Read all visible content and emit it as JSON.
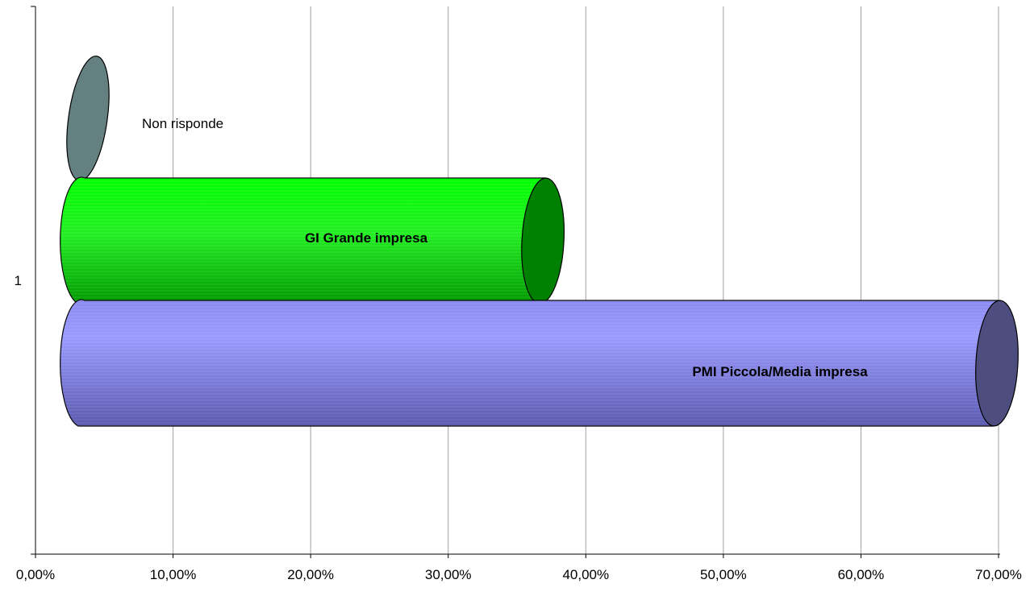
{
  "chart_data": {
    "type": "bar",
    "orientation": "horizontal",
    "style": "3d-cylinder",
    "categories": [
      "1"
    ],
    "series": [
      {
        "name": "Non risponde",
        "values": [
          0.035
        ],
        "color": "#658080",
        "end_color": "#658080",
        "label_bold": false
      },
      {
        "name": "GI Grande impresa",
        "values": [
          0.37
        ],
        "color": "#00ff00",
        "end_color": "#008000",
        "label_bold": true
      },
      {
        "name": "PMI Piccola/Media impresa",
        "values": [
          0.7
        ],
        "color": "#9999ff",
        "end_color": "#4d4d80",
        "label_bold": true
      }
    ],
    "x_ticks": [
      "0,00%",
      "10,00%",
      "20,00%",
      "30,00%",
      "40,00%",
      "50,00%",
      "60,00%",
      "70,00%"
    ],
    "xlim": [
      0,
      0.7
    ],
    "grid": true,
    "legend": "none",
    "title": "",
    "xlabel": "",
    "ylabel": ""
  }
}
